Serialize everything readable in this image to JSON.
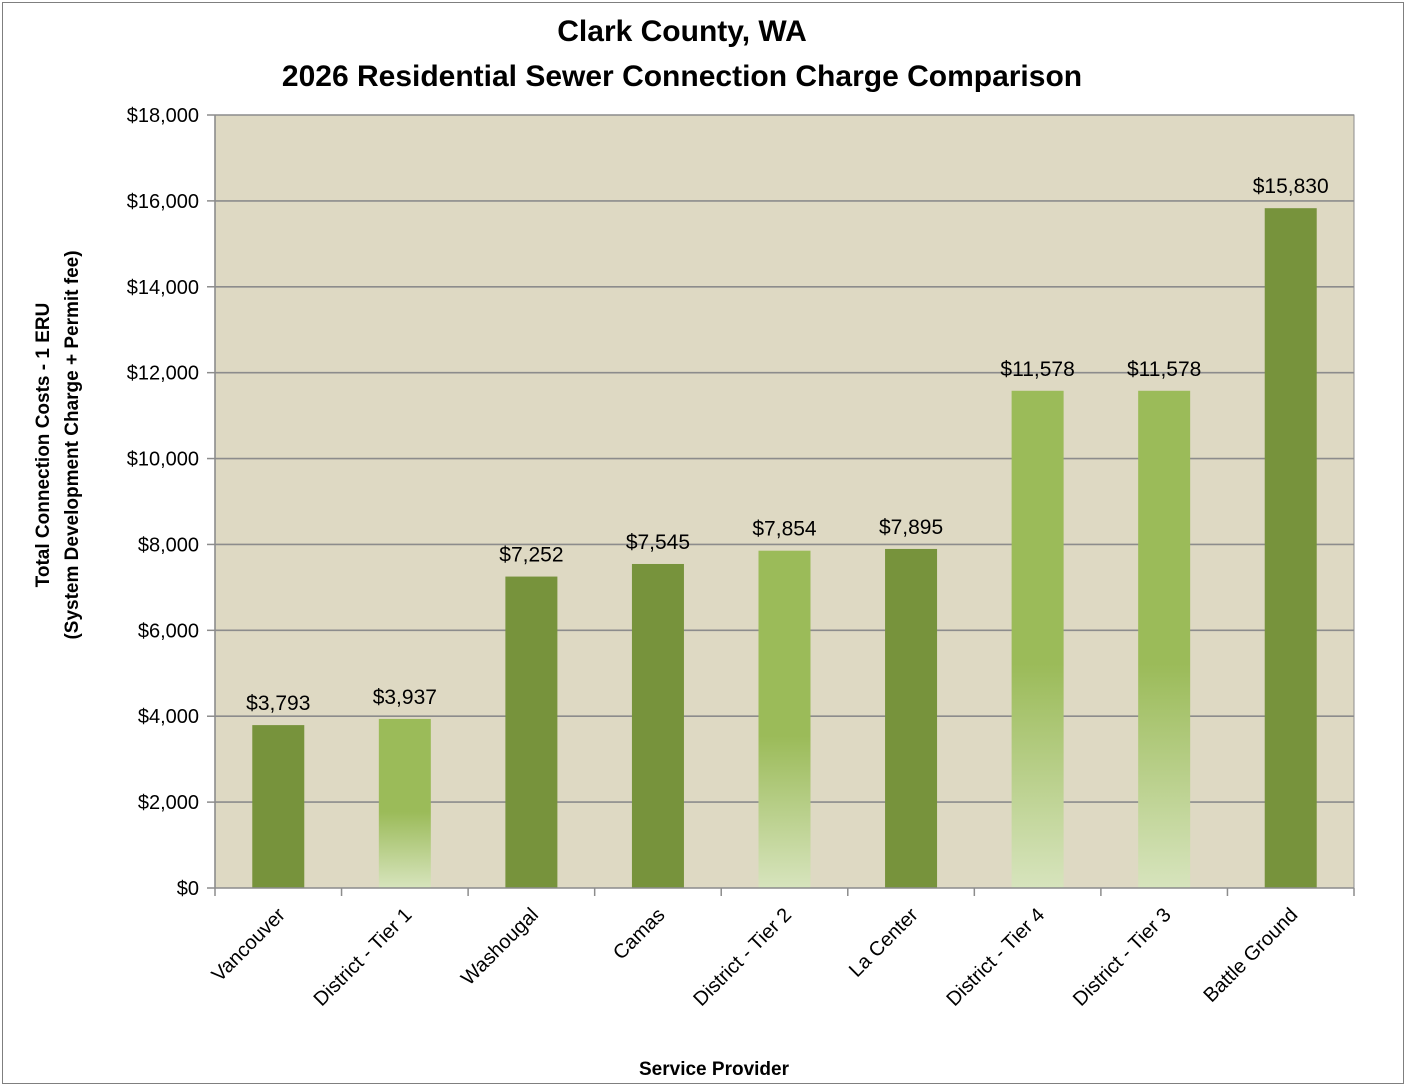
{
  "chart_data": {
    "type": "bar",
    "title_line1": "Clark County, WA",
    "title_line2": "2026 Residential Sewer Connection Charge Comparison",
    "xlabel": "Service Provider",
    "ylabel_line1": "Total Connection Costs - 1 ERU",
    "ylabel_line2": "(System Development Charge + Permit fee)",
    "ylim": [
      0,
      18000
    ],
    "ytick_step": 2000,
    "ytick_labels": [
      "$0",
      "$2,000",
      "$4,000",
      "$6,000",
      "$8,000",
      "$10,000",
      "$12,000",
      "$14,000",
      "$16,000",
      "$18,000"
    ],
    "grid": true,
    "plot_background": "#ded9c3",
    "categories": [
      "Vancouver",
      "District - Tier 1",
      "Washougal",
      "Camas",
      "District - Tier 2",
      "La Center",
      "District - Tier 4",
      "District - Tier 3",
      "Battle Ground"
    ],
    "values": [
      3793,
      3937,
      7252,
      7545,
      7854,
      7895,
      11578,
      11578,
      15830
    ],
    "value_labels": [
      "$3,793",
      "$3,937",
      "$7,252",
      "$7,545",
      "$7,854",
      "$7,895",
      "$11,578",
      "$11,578",
      "$15,830"
    ],
    "bar_styles": [
      "solid",
      "gradient",
      "solid",
      "solid",
      "gradient",
      "solid",
      "gradient",
      "gradient",
      "solid"
    ],
    "colors": {
      "solid": "#77933c",
      "gradient_top": "#9bbb59",
      "gradient_bottom": "#d7e4bd"
    }
  }
}
